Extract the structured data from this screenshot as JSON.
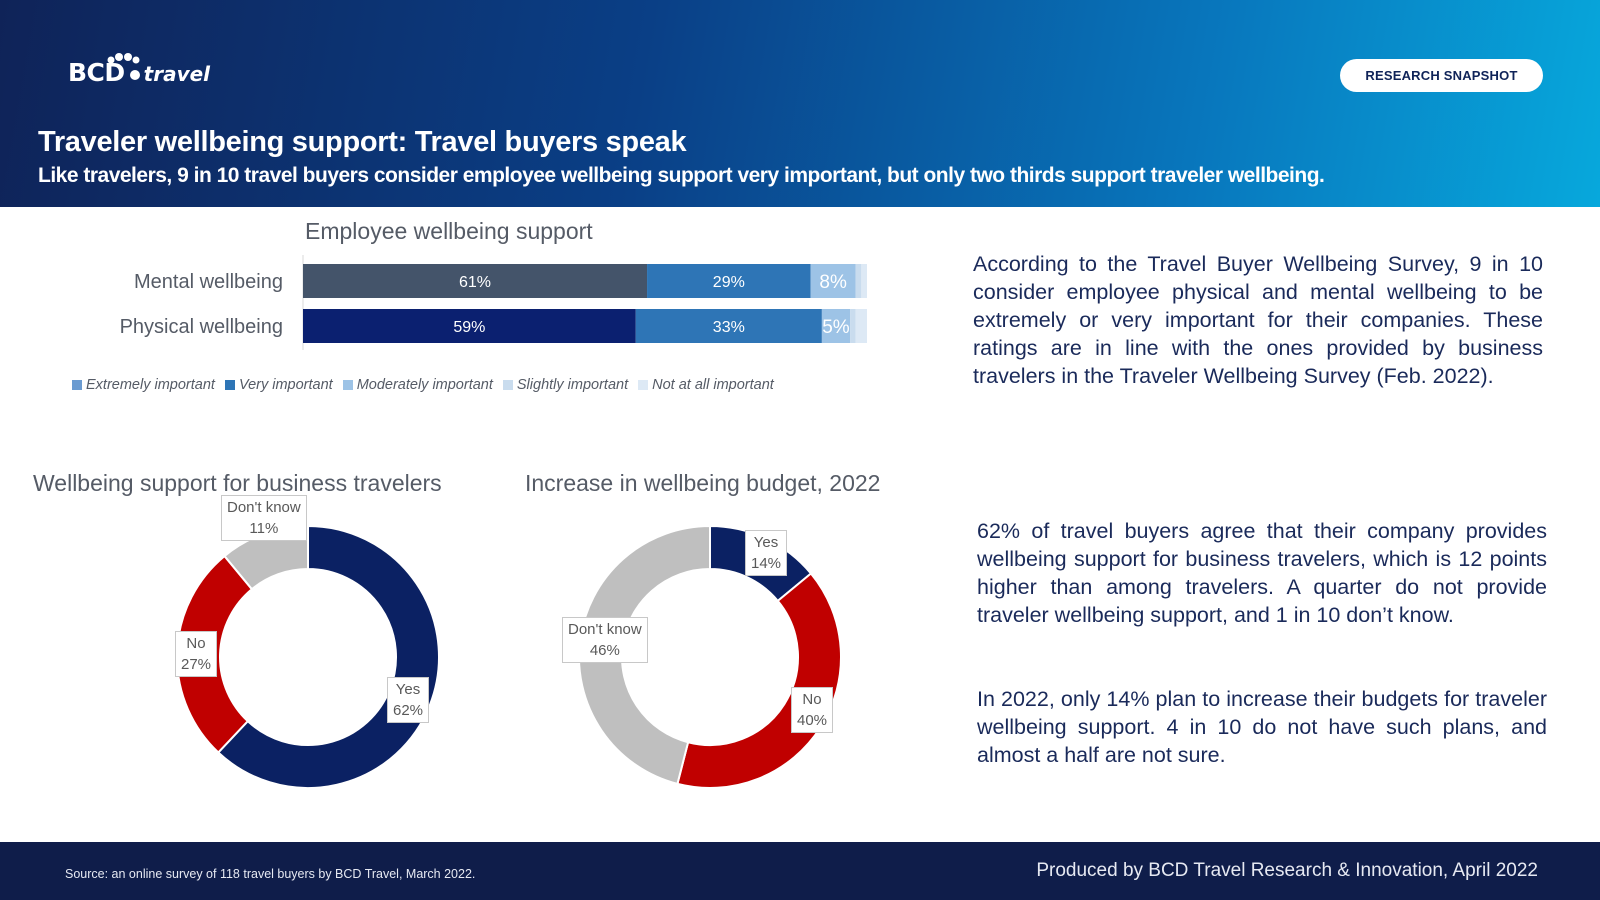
{
  "header": {
    "logo_text": "BCD",
    "logo_suffix": "travel",
    "badge": "RESEARCH SNAPSHOT",
    "title": "Traveler wellbeing support: Travel buyers speak",
    "subtitle": "Like travelers, 9 in 10 travel buyers consider employee wellbeing support very important, but only two thirds support traveler wellbeing."
  },
  "colors": {
    "extremely": "#44546a",
    "extremely_row2": "#0b2070",
    "very": "#2e75b6",
    "moderately": "#9dc3e6",
    "slightly": "#c9dcee",
    "not_at_all": "#dde9f5",
    "navy": "#0b2163",
    "red": "#c00000",
    "gray": "#bfbfbf"
  },
  "chart_data": [
    {
      "type": "bar",
      "title": "Employee wellbeing support",
      "categories": [
        "Mental wellbeing",
        "Physical wellbeing"
      ],
      "stacked": true,
      "orientation": "horizontal",
      "series": [
        {
          "name": "Extremely important",
          "values": [
            61,
            59
          ],
          "labels": [
            "61%",
            "59%"
          ]
        },
        {
          "name": "Very important",
          "values": [
            29,
            33
          ],
          "labels": [
            "29%",
            "33%"
          ]
        },
        {
          "name": "Moderately important",
          "values": [
            8,
            5
          ],
          "labels": [
            "8%",
            "5%"
          ]
        },
        {
          "name": "Slightly important",
          "values": [
            1,
            1
          ]
        },
        {
          "name": "Not at all important",
          "values": [
            1,
            2
          ]
        }
      ],
      "xlim": [
        0,
        100
      ],
      "legend": "bottom"
    },
    {
      "type": "pie",
      "variant": "donut",
      "title": "Wellbeing support for business travelers",
      "slices": [
        {
          "label": "Yes",
          "value": 62,
          "text": "62%"
        },
        {
          "label": "No",
          "value": 27,
          "text": "27%"
        },
        {
          "label": "Don't know",
          "value": 11,
          "text": "11%"
        }
      ]
    },
    {
      "type": "pie",
      "variant": "donut",
      "title": "Increase in wellbeing budget, 2022",
      "slices": [
        {
          "label": "Yes",
          "value": 14,
          "text": "14%"
        },
        {
          "label": "No",
          "value": 40,
          "text": "40%"
        },
        {
          "label": "Don't know",
          "value": 46,
          "text": "46%"
        }
      ]
    }
  ],
  "text": {
    "para1": "According to the Travel Buyer Wellbeing Survey, 9 in 10 consider employee physical and mental wellbeing to be extremely or very important for their companies. These ratings are in line with the ones provided by business travelers in the Traveler Wellbeing Survey (Feb. 2022).",
    "para2": "62% of travel buyers agree that their company provides wellbeing support for business travelers, which is 12 points higher than among travelers. A quarter do not provide traveler wellbeing support, and 1 in 10 don’t know.",
    "para3": "In 2022, only 14% plan to increase their budgets for traveler wellbeing support. 4 in 10 do not have such plans, and almost a half are not sure."
  },
  "footer": {
    "source": "Source: an online survey of 118 travel buyers by BCD Travel, March 2022.",
    "produced": "Produced by BCD Travel Research & Innovation, April 2022"
  }
}
